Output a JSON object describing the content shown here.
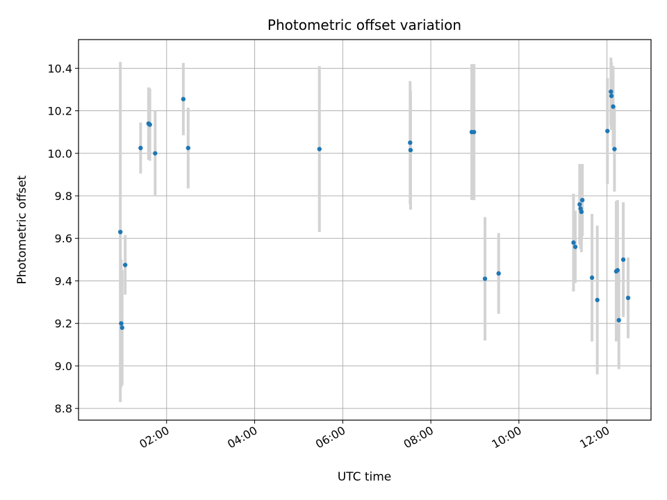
{
  "chart_data": {
    "type": "scatter",
    "title": "Photometric offset variation",
    "xlabel": "UTC time",
    "ylabel": "Photometric offset",
    "x_unit": "hours (UTC)",
    "xlim": [
      0.0,
      13.0
    ],
    "ylim": [
      8.745,
      10.535
    ],
    "grid": true,
    "x_ticks": [
      {
        "value": 2,
        "label": "02:00"
      },
      {
        "value": 4,
        "label": "04:00"
      },
      {
        "value": 6,
        "label": "06:00"
      },
      {
        "value": 8,
        "label": "08:00"
      },
      {
        "value": 10,
        "label": "10:00"
      },
      {
        "value": 12,
        "label": "12:00"
      }
    ],
    "y_ticks": [
      {
        "value": 8.8,
        "label": "8.8"
      },
      {
        "value": 9.0,
        "label": "9.0"
      },
      {
        "value": 9.2,
        "label": "9.2"
      },
      {
        "value": 9.4,
        "label": "9.4"
      },
      {
        "value": 9.6,
        "label": "9.6"
      },
      {
        "value": 9.8,
        "label": "9.8"
      },
      {
        "value": 10.0,
        "label": "10.0"
      },
      {
        "value": 10.2,
        "label": "10.2"
      },
      {
        "value": 10.4,
        "label": "10.4"
      }
    ],
    "marker_color": "#1f77b4",
    "errorbar_color": "#d3d3d3",
    "points": [
      {
        "x": 0.95,
        "y": 9.63,
        "err": 0.8
      },
      {
        "x": 0.97,
        "y": 9.2,
        "err": 0.3
      },
      {
        "x": 0.99,
        "y": 9.18,
        "err": 0.27
      },
      {
        "x": 1.06,
        "y": 9.475,
        "err": 0.14
      },
      {
        "x": 1.41,
        "y": 10.025,
        "err": 0.12
      },
      {
        "x": 1.59,
        "y": 10.14,
        "err": 0.17
      },
      {
        "x": 1.62,
        "y": 10.135,
        "err": 0.17
      },
      {
        "x": 1.74,
        "y": 10.0,
        "err": 0.2
      },
      {
        "x": 2.38,
        "y": 10.255,
        "err": 0.17
      },
      {
        "x": 2.49,
        "y": 10.025,
        "err": 0.19
      },
      {
        "x": 5.47,
        "y": 10.02,
        "err": 0.39
      },
      {
        "x": 7.53,
        "y": 10.05,
        "err": 0.29
      },
      {
        "x": 7.54,
        "y": 10.015,
        "err": 0.28
      },
      {
        "x": 8.93,
        "y": 10.1,
        "err": 0.32
      },
      {
        "x": 8.98,
        "y": 10.1,
        "err": 0.32
      },
      {
        "x": 9.23,
        "y": 9.41,
        "err": 0.29
      },
      {
        "x": 9.54,
        "y": 9.435,
        "err": 0.19
      },
      {
        "x": 11.24,
        "y": 9.58,
        "err": 0.23
      },
      {
        "x": 11.28,
        "y": 9.56,
        "err": 0.17
      },
      {
        "x": 11.38,
        "y": 9.76,
        "err": 0.19
      },
      {
        "x": 11.4,
        "y": 9.74,
        "err": 0.19
      },
      {
        "x": 11.42,
        "y": 9.725,
        "err": 0.19
      },
      {
        "x": 11.44,
        "y": 9.78,
        "err": 0.17
      },
      {
        "x": 11.66,
        "y": 9.415,
        "err": 0.3
      },
      {
        "x": 11.78,
        "y": 9.31,
        "err": 0.35
      },
      {
        "x": 12.01,
        "y": 10.105,
        "err": 0.25
      },
      {
        "x": 12.09,
        "y": 10.29,
        "err": 0.16
      },
      {
        "x": 12.1,
        "y": 10.27,
        "err": 0.16
      },
      {
        "x": 12.14,
        "y": 10.22,
        "err": 0.19
      },
      {
        "x": 12.17,
        "y": 10.02,
        "err": 0.2
      },
      {
        "x": 12.21,
        "y": 9.445,
        "err": 0.33
      },
      {
        "x": 12.24,
        "y": 9.45,
        "err": 0.33
      },
      {
        "x": 12.27,
        "y": 9.215,
        "err": 0.23
      },
      {
        "x": 12.37,
        "y": 9.5,
        "err": 0.27
      },
      {
        "x": 12.48,
        "y": 9.32,
        "err": 0.19
      }
    ]
  }
}
